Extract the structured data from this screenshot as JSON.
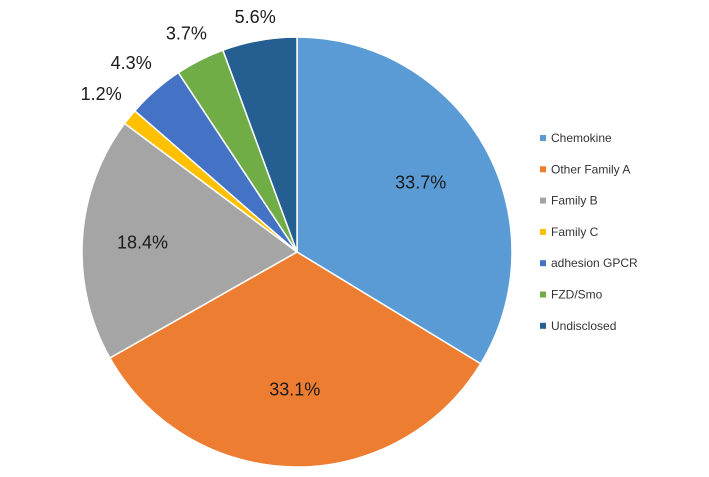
{
  "chart_data": {
    "type": "pie",
    "title": "",
    "legend_position": "right",
    "start_angle_deg": 0,
    "direction": "clockwise",
    "slices": [
      {
        "name": "Chemokine",
        "value": 33.7,
        "label": "33.7%",
        "color": "#5b9bd5"
      },
      {
        "name": "Other Family A",
        "value": 33.1,
        "label": "33.1%",
        "color": "#ed7d31"
      },
      {
        "name": "Family B",
        "value": 18.4,
        "label": "18.4%",
        "color": "#a5a5a5"
      },
      {
        "name": "Family C",
        "value": 1.2,
        "label": "1.2%",
        "color": "#ffc000"
      },
      {
        "name": "adhesion GPCR",
        "value": 4.3,
        "label": "4.3%",
        "color": "#4472c4"
      },
      {
        "name": "FZD/Smo",
        "value": 3.7,
        "label": "3.7%",
        "color": "#70ad47"
      },
      {
        "name": "Undisclosed",
        "value": 5.6,
        "label": "5.6%",
        "color": "#255e91"
      }
    ]
  }
}
